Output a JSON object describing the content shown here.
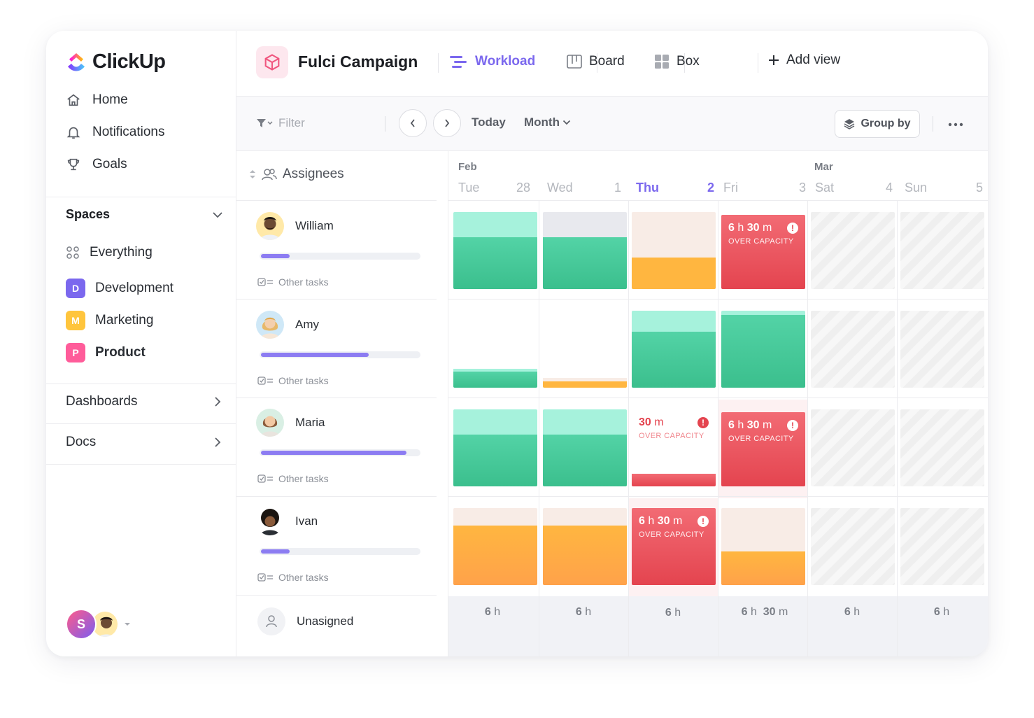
{
  "app": {
    "name": "ClickUp"
  },
  "sidebar": {
    "nav": [
      {
        "label": "Home",
        "icon": "home-icon"
      },
      {
        "label": "Notifications",
        "icon": "bell-icon"
      },
      {
        "label": "Goals",
        "icon": "trophy-icon"
      }
    ],
    "spaces_title": "Spaces",
    "everything_label": "Everything",
    "spaces": [
      {
        "letter": "D",
        "label": "Development",
        "color": "#7b68ee"
      },
      {
        "letter": "M",
        "label": "Marketing",
        "color": "#ffc53d"
      },
      {
        "letter": "P",
        "label": "Product",
        "color": "#ff5c9a"
      }
    ],
    "sections": [
      {
        "label": "Dashboards"
      },
      {
        "label": "Docs"
      }
    ],
    "user_initial": "S"
  },
  "topbar": {
    "project": "Fulci Campaign",
    "views": [
      {
        "label": "Workload",
        "active": true
      },
      {
        "label": "Board",
        "active": false
      },
      {
        "label": "Box",
        "active": false
      },
      {
        "label": "Add view",
        "active": false
      }
    ]
  },
  "toolbar": {
    "filter_placeholder": "Filter",
    "today": "Today",
    "month": "Month",
    "group_by": "Group by"
  },
  "assignees": {
    "header": "Assignees",
    "other_tasks_label": "Other tasks",
    "people": [
      {
        "name": "William",
        "progress": 0.18
      },
      {
        "name": "Amy",
        "progress": 0.68
      },
      {
        "name": "Maria",
        "progress": 0.92
      },
      {
        "name": "Ivan",
        "progress": 0.18
      }
    ],
    "unassigned": "Unasigned"
  },
  "calendar": {
    "months": [
      {
        "label": "Feb"
      },
      {
        "label": "Mar"
      }
    ],
    "days": [
      {
        "name": "Tue",
        "num": "28",
        "today": false
      },
      {
        "name": "Wed",
        "num": "1",
        "today": false
      },
      {
        "name": "Thu",
        "num": "2",
        "today": true
      },
      {
        "name": "Fri",
        "num": "3",
        "today": false
      },
      {
        "name": "Sat",
        "num": "4",
        "today": false
      },
      {
        "name": "Sun",
        "num": "5",
        "today": false
      }
    ],
    "over_capacity_label": "OVER CAPACITY",
    "over": [
      {
        "hours": "6",
        "h": "h",
        "minutes": "30",
        "m": "m"
      },
      {
        "hours": "6",
        "h": "h",
        "minutes": "30",
        "m": "m"
      },
      {
        "minutes": "30",
        "m": "m"
      },
      {
        "hours": "6",
        "h": "h",
        "minutes": "30",
        "m": "m"
      }
    ],
    "totals": [
      {
        "v": "6",
        "u": "h"
      },
      {
        "v": "6",
        "u": "h"
      },
      {
        "v": "6",
        "u": "h"
      },
      {
        "v": "6",
        "u": "h",
        "v2": "30",
        "u2": "m"
      },
      {
        "v": "6",
        "u": "h"
      },
      {
        "v": "6",
        "u": "h"
      }
    ],
    "colors": {
      "green": "#4fd1a5",
      "green_light": "#a6f2dc",
      "orange": "#ffb14d",
      "orange_light": "#f8ece6",
      "red": "#e4444f",
      "gray_light": "#e8e9ee"
    }
  }
}
